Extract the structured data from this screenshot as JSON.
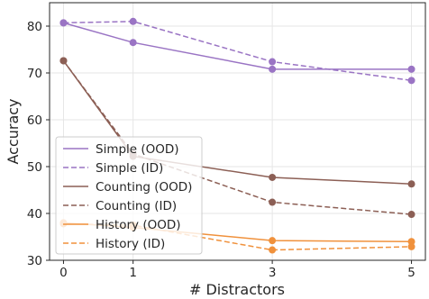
{
  "chart_data": {
    "type": "line",
    "xlabel": "# Distractors",
    "ylabel": "Accuracy",
    "x": [
      0,
      1,
      3,
      5
    ],
    "xlim": [
      -0.2,
      5.2
    ],
    "ylim": [
      30,
      85
    ],
    "xticks": [
      "0",
      "1",
      "3",
      "5"
    ],
    "yticks": [
      "30",
      "40",
      "50",
      "60",
      "70",
      "80"
    ],
    "grid": true,
    "legend_position": "lower-left",
    "series": [
      {
        "name": "Simple (OOD)",
        "values": [
          80.7,
          76.5,
          70.8,
          70.8
        ],
        "color": "#9a74c4",
        "dashed": false
      },
      {
        "name": "Simple (ID)",
        "values": [
          80.7,
          81.0,
          72.4,
          68.4
        ],
        "color": "#9a74c4",
        "dashed": true
      },
      {
        "name": "Counting (OOD)",
        "values": [
          72.6,
          52.2,
          47.7,
          46.3
        ],
        "color": "#8c5f55",
        "dashed": false
      },
      {
        "name": "Counting (ID)",
        "values": [
          72.6,
          52.7,
          42.4,
          39.8
        ],
        "color": "#8c5f55",
        "dashed": true
      },
      {
        "name": "History (OOD)",
        "values": [
          38.0,
          37.0,
          34.2,
          34.0
        ],
        "color": "#f0913c",
        "dashed": false
      },
      {
        "name": "History (ID)",
        "values": [
          37.8,
          37.5,
          32.2,
          32.9
        ],
        "color": "#f0913c",
        "dashed": true
      }
    ]
  }
}
